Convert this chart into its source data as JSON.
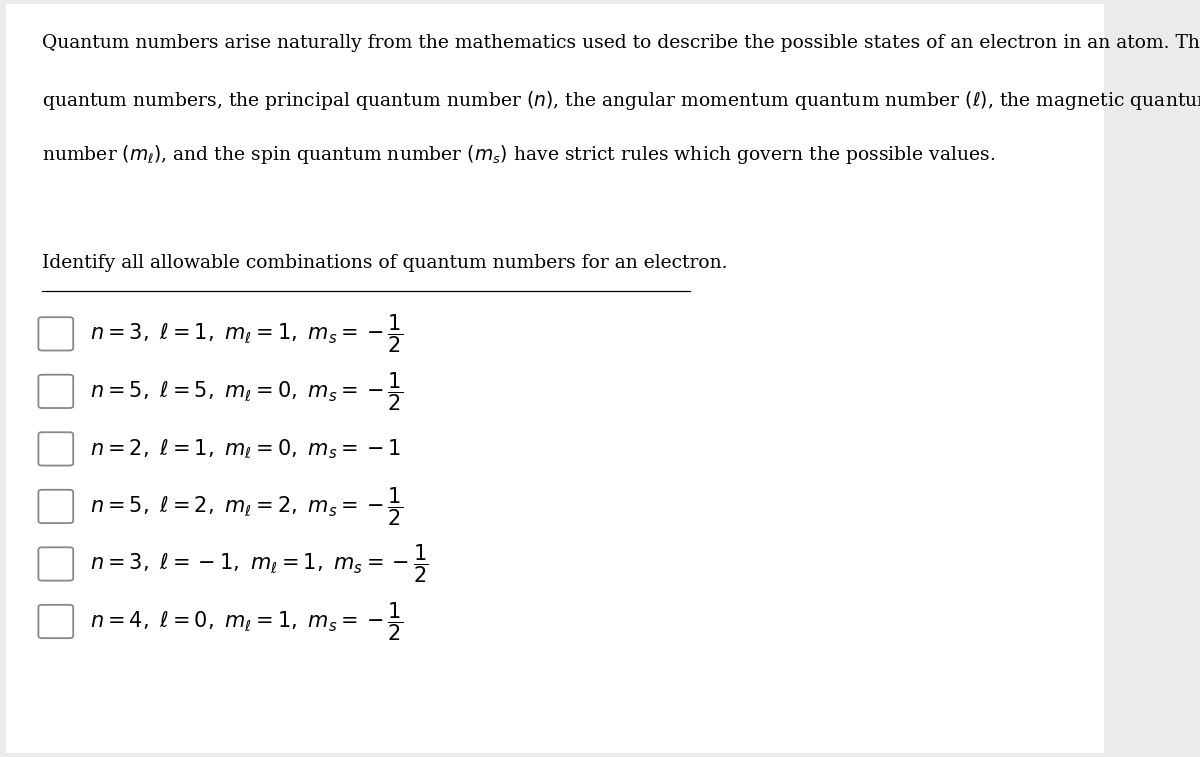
{
  "bg_color": "#ebebeb",
  "panel_color": "#ffffff",
  "question_text": "Identify all allowable combinations of quantum numbers for an electron.",
  "font_size_para": 13.5,
  "font_size_question": 13.5,
  "font_size_options": 15,
  "text_color": "#000000",
  "checkbox_edge_color": "#888888"
}
